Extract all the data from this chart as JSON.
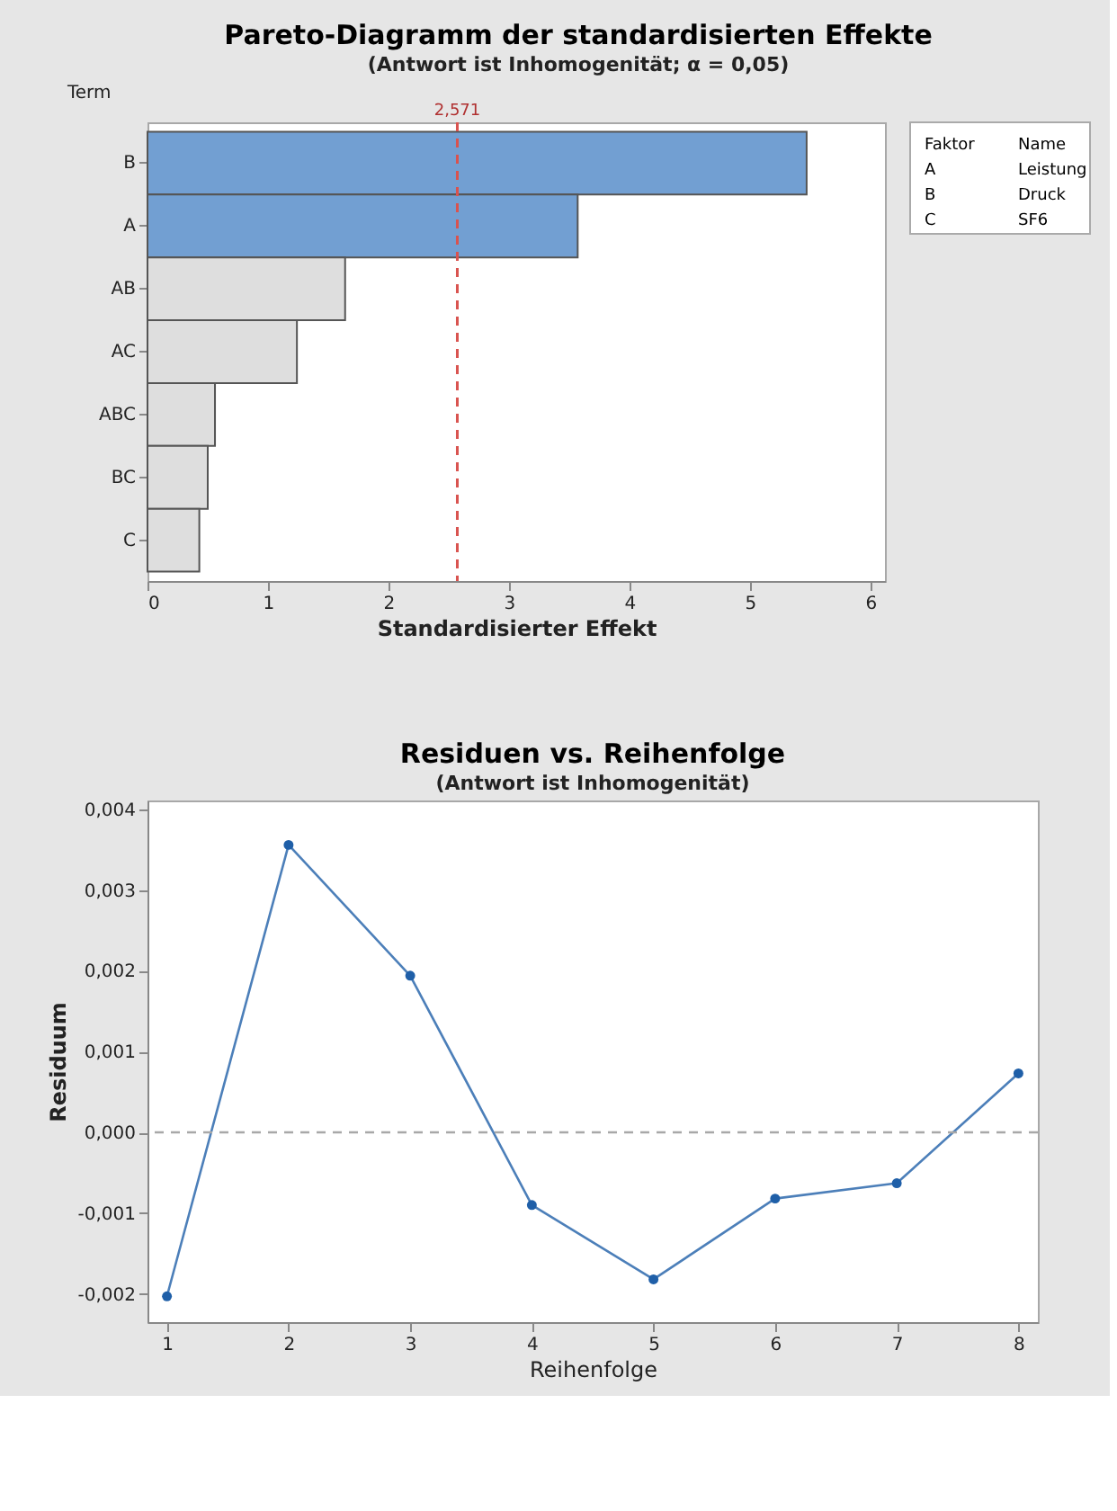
{
  "chart_data": [
    {
      "type": "bar",
      "orientation": "horizontal",
      "title": "Pareto-Diagramm der standardisierten Effekte",
      "subtitle": "(Antwort ist Inhomogenität; α = 0,05)",
      "xlabel": "Standardisierter Effekt",
      "ylabel": "Term",
      "categories": [
        "B",
        "A",
        "AB",
        "AC",
        "ABC",
        "BC",
        "C"
      ],
      "values": [
        5.47,
        3.57,
        1.64,
        1.24,
        0.56,
        0.5,
        0.43
      ],
      "colors": [
        "#729fd2",
        "#729fd2",
        "#dedede",
        "#dedede",
        "#dedede",
        "#dedede",
        "#dedede"
      ],
      "xlim": [
        0,
        6.12
      ],
      "xticks": [
        0,
        1,
        2,
        3,
        4,
        5,
        6
      ],
      "ref_lines": [
        {
          "axis": "x",
          "value": 2.571,
          "label": "2,571",
          "color": "#d9534f",
          "line_style": "dashed"
        }
      ],
      "annotations": [
        "Faktor",
        "Name",
        "A",
        "Leistung",
        "B",
        "Druck",
        "C",
        "SF6"
      ],
      "grid": false
    },
    {
      "type": "line",
      "title": "Residuen vs. Reihenfolge",
      "subtitle": "(Antwort ist Inhomogenität)",
      "xlabel": "Reihenfolge",
      "ylabel": "Residuum",
      "x": [
        1,
        2,
        3,
        4,
        5,
        6,
        7,
        8
      ],
      "series": [
        {
          "color": "#1f5fa8",
          "values": [
            -0.00203,
            0.00356,
            0.00194,
            -0.0009,
            -0.00182,
            -0.00082,
            -0.00063,
            0.00073
          ]
        }
      ],
      "xlim": [
        0.84,
        8.16
      ],
      "xticks": [
        1,
        2,
        3,
        4,
        5,
        6,
        7,
        8
      ],
      "ylim": [
        -0.00235,
        0.00411
      ],
      "yticks": [
        {
          "value": -0.002,
          "label": "-0,002"
        },
        {
          "value": -0.001,
          "label": "-0,001"
        },
        {
          "value": 0,
          "label": "0,000"
        },
        {
          "value": 0.001,
          "label": "0,001"
        },
        {
          "value": 0.002,
          "label": "0,002"
        },
        {
          "value": 0.003,
          "label": "0,003"
        },
        {
          "value": 0.004,
          "label": "0,004"
        }
      ],
      "ref_lines": [
        {
          "axis": "y",
          "value": 0,
          "label": null,
          "color": "#a8a8a8",
          "line_style": "dashed"
        }
      ],
      "marker": "circle",
      "line_style": "solid",
      "grid": false
    }
  ]
}
